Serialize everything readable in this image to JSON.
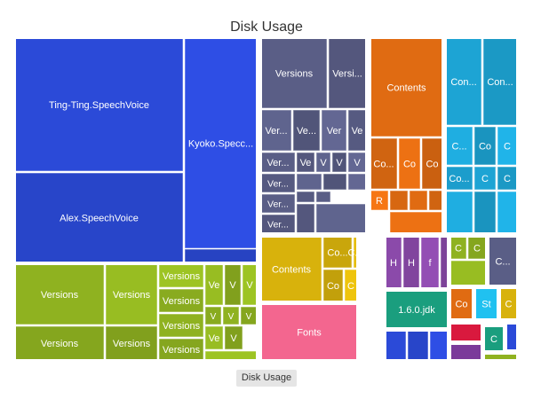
{
  "chart_data": {
    "type": "treemap",
    "title": "Disk Usage",
    "breadcrumb": "Disk Usage",
    "groups": [
      {
        "color": "#2b4ad8",
        "children": [
          {
            "label": "Ting-Ting.SpeechVoice",
            "value": 100
          },
          {
            "label": "Alex.SpeechVoice",
            "value": 78
          },
          {
            "label": "Kyoko.Specc...",
            "value": 62
          },
          {
            "label": "",
            "value": 3
          }
        ]
      },
      {
        "color": "#5a5e86",
        "children": [
          {
            "label": "Versions",
            "value": 20
          },
          {
            "label": "Versi...",
            "value": 12
          },
          {
            "label": "Ver...",
            "value": 5
          },
          {
            "label": "Ve...",
            "value": 4
          },
          {
            "label": "Ver",
            "value": 4
          },
          {
            "label": "Ve",
            "value": 3
          },
          {
            "label": "Ver...",
            "value": 4
          },
          {
            "label": "Ve",
            "value": 3
          },
          {
            "label": "V",
            "value": 2.5
          },
          {
            "label": "V",
            "value": 2.5
          },
          {
            "label": "V",
            "value": 2.5
          },
          {
            "label": "Ver...",
            "value": 4
          },
          {
            "label": "Ver...",
            "value": 4
          },
          {
            "label": "Ver...",
            "value": 4
          },
          {
            "label": "",
            "value": 3
          },
          {
            "label": "",
            "value": 3
          },
          {
            "label": "",
            "value": 2
          },
          {
            "label": "",
            "value": 2
          },
          {
            "label": "",
            "value": 2
          },
          {
            "label": "",
            "value": 1.5
          },
          {
            "label": "",
            "value": 1.5
          }
        ]
      },
      {
        "color": "#e06b12",
        "children": [
          {
            "label": "Contents",
            "value": 28
          },
          {
            "label": "Co...",
            "value": 6
          },
          {
            "label": "Co",
            "value": 6
          },
          {
            "label": "Co",
            "value": 6
          },
          {
            "label": "R",
            "value": 3
          },
          {
            "label": "",
            "value": 3
          },
          {
            "label": "",
            "value": 2
          },
          {
            "label": "",
            "value": 2
          },
          {
            "label": "",
            "value": 1.5
          }
        ]
      },
      {
        "color": "#1da4d4",
        "children": [
          {
            "label": "Con...",
            "value": 10
          },
          {
            "label": "Con...",
            "value": 10
          },
          {
            "label": "C...",
            "value": 4
          },
          {
            "label": "Co",
            "value": 4
          },
          {
            "label": "C",
            "value": 4
          },
          {
            "label": "Co...",
            "value": 3
          },
          {
            "label": "C",
            "value": 3
          },
          {
            "label": "C",
            "value": 3
          },
          {
            "label": "",
            "value": 2
          },
          {
            "label": "",
            "value": 2
          },
          {
            "label": "",
            "value": 2
          }
        ]
      },
      {
        "color": "#8fb220",
        "children": [
          {
            "label": "Versions",
            "value": 20
          },
          {
            "label": "Versions",
            "value": 20
          },
          {
            "label": "Versions",
            "value": 20
          },
          {
            "label": "Versions",
            "value": 20
          },
          {
            "label": "Versions",
            "value": 5
          },
          {
            "label": "Versions",
            "value": 5
          },
          {
            "label": "Versions",
            "value": 5
          },
          {
            "label": "Versions",
            "value": 5
          },
          {
            "label": "Ve",
            "value": 3
          },
          {
            "label": "V",
            "value": 3
          },
          {
            "label": "V",
            "value": 3
          },
          {
            "label": "V",
            "value": 2.5
          },
          {
            "label": "V",
            "value": 2.5
          },
          {
            "label": "V",
            "value": 2.5
          },
          {
            "label": "Ve",
            "value": 2.5
          },
          {
            "label": "V",
            "value": 2.5
          },
          {
            "label": "",
            "value": 1.5
          }
        ]
      },
      {
        "color": "#d8b20c",
        "children": [
          {
            "label": "Contents",
            "value": 18
          },
          {
            "label": "Co...",
            "value": 5
          },
          {
            "label": "C...",
            "value": 5
          },
          {
            "label": "Co",
            "value": 3
          },
          {
            "label": "C",
            "value": 3
          },
          {
            "label": "",
            "value": 1.5
          },
          {
            "label": "",
            "value": 1.5
          }
        ]
      },
      {
        "color": "#f3668f",
        "children": [
          {
            "label": "Fonts",
            "value": 20
          }
        ]
      },
      {
        "color": "#8b4aaa",
        "children": [
          {
            "label": "H",
            "value": 3
          },
          {
            "label": "H",
            "value": 3
          },
          {
            "label": "f",
            "value": 3
          },
          {
            "label": "",
            "value": 2
          }
        ]
      },
      {
        "color": "#1a9e7e",
        "children": [
          {
            "label": "1.6.0.jdk",
            "value": 6
          }
        ]
      },
      {
        "color": "#2b4ad8",
        "children": [
          {
            "label": "",
            "value": 2
          },
          {
            "label": "",
            "value": 2
          },
          {
            "label": "",
            "value": 2
          }
        ]
      },
      {
        "color": "#8fb220",
        "children": [
          {
            "label": "C",
            "value": 2
          },
          {
            "label": "C",
            "value": 2
          },
          {
            "label": "",
            "value": 2
          }
        ]
      },
      {
        "color": "#5a5e86",
        "children": [
          {
            "label": "C...",
            "value": 4
          }
        ]
      },
      {
        "color": "#e06b12",
        "children": [
          {
            "label": "Co",
            "value": 2
          }
        ]
      },
      {
        "color": "#20c1f0",
        "children": [
          {
            "label": "St",
            "value": 2
          }
        ]
      },
      {
        "color": "#d8b20c",
        "children": [
          {
            "label": "C",
            "value": 2
          }
        ]
      },
      {
        "color": "#d9193e",
        "children": [
          {
            "label": "",
            "value": 1.5
          }
        ]
      },
      {
        "color": "#1a9e7e",
        "children": [
          {
            "label": "C",
            "value": 1.5
          }
        ]
      },
      {
        "color": "#2b4ad8",
        "children": [
          {
            "label": "",
            "value": 1.5
          }
        ]
      },
      {
        "color": "#7b3a9a",
        "children": [
          {
            "label": "",
            "value": 1.5
          }
        ]
      },
      {
        "color": "#8fb220",
        "children": [
          {
            "label": "",
            "value": 1
          }
        ]
      }
    ]
  }
}
